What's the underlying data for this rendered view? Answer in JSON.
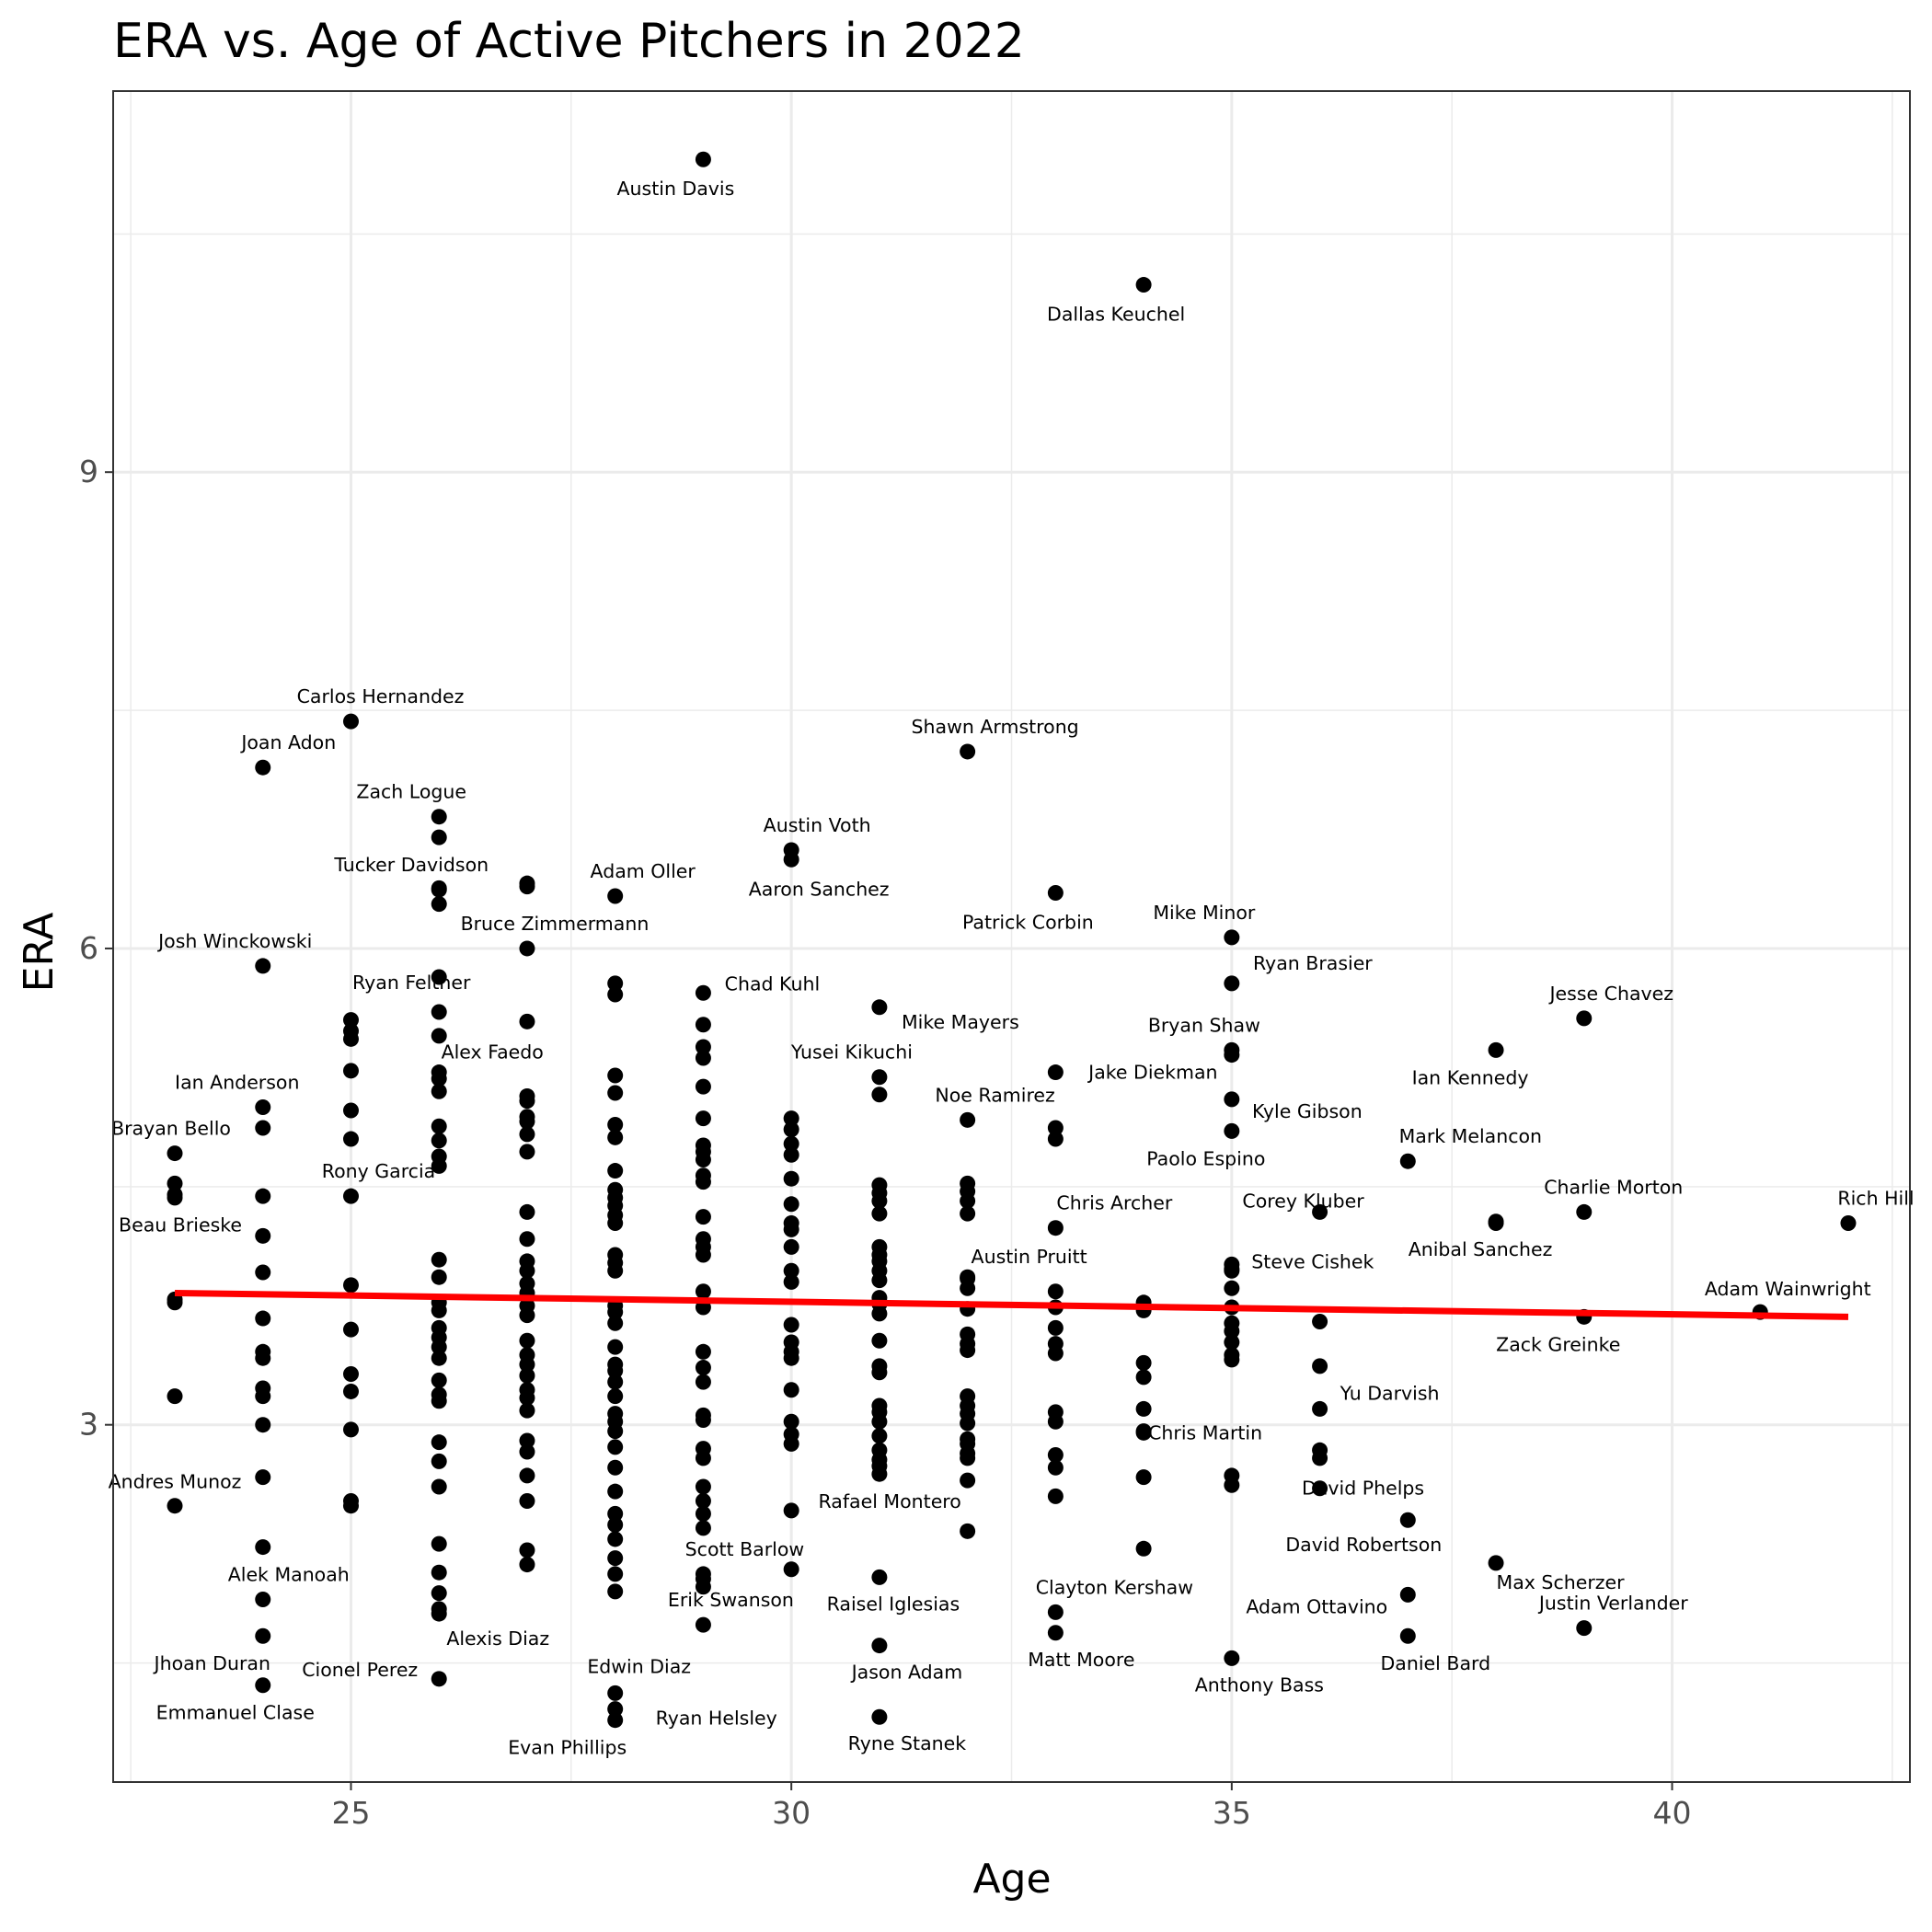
{
  "chart_data": {
    "type": "scatter",
    "title": "ERA vs. Age of Active Pitchers in 2022",
    "xlabel": "Age",
    "ylabel": "ERA",
    "xlim": [
      22.3,
      42.7
    ],
    "ylim": [
      0.75,
      11.4
    ],
    "x_ticks": [
      25,
      30,
      35,
      40
    ],
    "y_ticks": [
      3,
      6,
      9
    ],
    "x_minor_ticks": [
      22.5,
      27.5,
      32.5,
      37.5,
      42.5
    ],
    "y_minor_ticks": [
      1.5,
      4.5,
      7.5,
      10.5
    ],
    "grid": true,
    "marker_color": "#000000",
    "trend_color": "#ff0000",
    "trend_line": {
      "x": [
        23,
        42
      ],
      "y": [
        3.83,
        3.68
      ]
    },
    "labeled_points": [
      {
        "name": "Austin Davis",
        "x": 29,
        "y": 10.97,
        "dx": -30,
        "dy": 32
      },
      {
        "name": "Dallas Keuchel",
        "x": 34,
        "y": 10.18,
        "dx": -30,
        "dy": 32
      },
      {
        "name": "Carlos Hernandez",
        "x": 25,
        "y": 7.43,
        "dx": 32,
        "dy": -27
      },
      {
        "name": "Joan Adon",
        "x": 24,
        "y": 7.14,
        "dx": 28,
        "dy": -27
      },
      {
        "name": "Shawn Armstrong",
        "x": 32,
        "y": 7.24,
        "dx": 30,
        "dy": -27
      },
      {
        "name": "Zach Logue",
        "x": 26,
        "y": 6.83,
        "dx": -30,
        "dy": -27
      },
      {
        "name": "Austin Voth",
        "x": 30,
        "y": 6.62,
        "dx": 28,
        "dy": -27
      },
      {
        "name": "Aaron Sanchez",
        "x": 30,
        "y": 6.56,
        "dx": 30,
        "dy": 32
      },
      {
        "name": "Tucker Davidson",
        "x": 26,
        "y": 6.37,
        "dx": -30,
        "dy": -27
      },
      {
        "name": "Adam Oller",
        "x": 28,
        "y": 6.33,
        "dx": 30,
        "dy": -27
      },
      {
        "name": "Patrick Corbin",
        "x": 33,
        "y": 6.35,
        "dx": -30,
        "dy": 32
      },
      {
        "name": "Bruce Zimmermann",
        "x": 27,
        "y": 6.0,
        "dx": 30,
        "dy": -27
      },
      {
        "name": "Josh Winckowski",
        "x": 24,
        "y": 5.89,
        "dx": -30,
        "dy": -27
      },
      {
        "name": "Mike Minor",
        "x": 35,
        "y": 6.07,
        "dx": -30,
        "dy": -27
      },
      {
        "name": "Ryan Brasier",
        "x": 35,
        "y": 5.78,
        "dx": 88,
        "dy": -22
      },
      {
        "name": "Chad Kuhl",
        "x": 29,
        "y": 5.72,
        "dx": 75,
        "dy": -10
      },
      {
        "name": "Ryan Feltner",
        "x": 26,
        "y": 5.6,
        "dx": -30,
        "dy": -32
      },
      {
        "name": "Mike Mayers",
        "x": 31,
        "y": 5.63,
        "dx": 88,
        "dy": 16
      },
      {
        "name": "Jesse Chavez",
        "x": 39,
        "y": 5.56,
        "dx": 30,
        "dy": -27
      },
      {
        "name": "Bryan Shaw",
        "x": 35,
        "y": 5.36,
        "dx": -30,
        "dy": -27
      },
      {
        "name": "Alex Faedo",
        "x": 26,
        "y": 5.22,
        "dx": 58,
        "dy": -22
      },
      {
        "name": "Ian Kennedy",
        "x": 38,
        "y": 5.36,
        "dx": -28,
        "dy": 30
      },
      {
        "name": "Yusei Kikuchi",
        "x": 31,
        "y": 5.19,
        "dx": -30,
        "dy": -27
      },
      {
        "name": "Jake Diekman",
        "x": 33,
        "y": 5.22,
        "dx": 106,
        "dy": 0
      },
      {
        "name": "Ian Anderson",
        "x": 24,
        "y": 5.0,
        "dx": -28,
        "dy": -27
      },
      {
        "name": "Noe Ramirez",
        "x": 32,
        "y": 4.92,
        "dx": 30,
        "dy": -27
      },
      {
        "name": "Kyle Gibson",
        "x": 35,
        "y": 5.05,
        "dx": 82,
        "dy": 13
      },
      {
        "name": "Brayan Bello",
        "x": 23,
        "y": 4.71,
        "dx": -4,
        "dy": -27
      },
      {
        "name": "Mark Melancon",
        "x": 37,
        "y": 4.66,
        "dx": 68,
        "dy": -27
      },
      {
        "name": "Paolo Espino",
        "x": 35,
        "y": 4.85,
        "dx": -28,
        "dy": 30
      },
      {
        "name": "Rony Garcia",
        "x": 25,
        "y": 4.44,
        "dx": 30,
        "dy": -27
      },
      {
        "name": "Chris Archer",
        "x": 33,
        "y": 4.24,
        "dx": 64,
        "dy": -27
      },
      {
        "name": "Corey Kluber",
        "x": 36,
        "y": 4.34,
        "dx": -18,
        "dy": -12
      },
      {
        "name": "Charlie Morton",
        "x": 39,
        "y": 4.34,
        "dx": 32,
        "dy": -27
      },
      {
        "name": "Rich Hill",
        "x": 42,
        "y": 4.27,
        "dx": 30,
        "dy": -27
      },
      {
        "name": "Beau Brieske",
        "x": 23,
        "y": 4.45,
        "dx": 6,
        "dy": 33
      },
      {
        "name": "Anibal Sanchez",
        "x": 38,
        "y": 4.28,
        "dx": -17,
        "dy": 30
      },
      {
        "name": "Austin Pruitt",
        "x": 32,
        "y": 3.92,
        "dx": 67,
        "dy": -24
      },
      {
        "name": "Steve Cishek",
        "x": 35,
        "y": 3.98,
        "dx": 88,
        "dy": -8
      },
      {
        "name": "Adam Wainwright",
        "x": 41,
        "y": 3.71,
        "dx": 30,
        "dy": -25
      },
      {
        "name": "Zack Greinke",
        "x": 39,
        "y": 3.68,
        "dx": -28,
        "dy": 30
      },
      {
        "name": "Yu Darvish",
        "x": 36,
        "y": 3.1,
        "dx": 76,
        "dy": -17
      },
      {
        "name": "Chris Martin",
        "x": 34,
        "y": 2.95,
        "dx": 67,
        "dy": 0
      },
      {
        "name": "Andres Munoz",
        "x": 23,
        "y": 2.49,
        "dx": 0,
        "dy": -26
      },
      {
        "name": "David Phelps",
        "x": 36,
        "y": 2.6,
        "dx": 47,
        "dy": 0
      },
      {
        "name": "Rafael Montero",
        "x": 30,
        "y": 2.46,
        "dx": 107,
        "dy": -10
      },
      {
        "name": "David Robertson",
        "x": 37,
        "y": 2.4,
        "dx": -48,
        "dy": 27
      },
      {
        "name": "Max Scherzer",
        "x": 38,
        "y": 2.13,
        "dx": 70,
        "dy": 21
      },
      {
        "name": "Scott Barlow",
        "x": 29,
        "y": 2.06,
        "dx": 45,
        "dy": -27
      },
      {
        "name": "Clayton Kershaw",
        "x": 33,
        "y": 1.82,
        "dx": 64,
        "dy": -27
      },
      {
        "name": "Raisel Iglesias",
        "x": 31,
        "y": 2.04,
        "dx": 15,
        "dy": 29
      },
      {
        "name": "Alek Manoah",
        "x": 24,
        "y": 1.9,
        "dx": 28,
        "dy": -27
      },
      {
        "name": "Adam Ottavino",
        "x": 37,
        "y": 1.93,
        "dx": -99,
        "dy": 13
      },
      {
        "name": "Justin Verlander",
        "x": 39,
        "y": 1.72,
        "dx": 32,
        "dy": -27
      },
      {
        "name": "Erik Swanson",
        "x": 29,
        "y": 1.74,
        "dx": 30,
        "dy": -27
      },
      {
        "name": "Matt Moore",
        "x": 33,
        "y": 1.69,
        "dx": 28,
        "dy": 29
      },
      {
        "name": "Daniel Bard",
        "x": 37,
        "y": 1.67,
        "dx": 30,
        "dy": 30
      },
      {
        "name": "Jhoan Duran",
        "x": 24,
        "y": 1.67,
        "dx": -55,
        "dy": 30
      },
      {
        "name": "Alexis Diaz",
        "x": 26,
        "y": 1.84,
        "dx": 64,
        "dy": 32
      },
      {
        "name": "Jason Adam",
        "x": 31,
        "y": 1.61,
        "dx": 30,
        "dy": 29
      },
      {
        "name": "Anthony Bass",
        "x": 35,
        "y": 1.53,
        "dx": 30,
        "dy": 29
      },
      {
        "name": "Edwin Diaz",
        "x": 28,
        "y": 1.31,
        "dx": 26,
        "dy": -29
      },
      {
        "name": "Cionel Perez",
        "x": 26,
        "y": 1.4,
        "dx": -86,
        "dy": -10
      },
      {
        "name": "Emmanuel Clase",
        "x": 24,
        "y": 1.36,
        "dx": -30,
        "dy": 30
      },
      {
        "name": "Ryan Helsley",
        "x": 28,
        "y": 1.21,
        "dx": 110,
        "dy": 10
      },
      {
        "name": "Ryne Stanek",
        "x": 31,
        "y": 1.16,
        "dx": 30,
        "dy": 29
      },
      {
        "name": "Evan Phillips",
        "x": 28,
        "y": 1.14,
        "dx": -52,
        "dy": 30
      }
    ],
    "unlabeled_points": [
      [
        23,
        3.79
      ],
      [
        23,
        3.77
      ],
      [
        23,
        4.52
      ],
      [
        23,
        4.43
      ],
      [
        23,
        3.18
      ],
      [
        24,
        4.44
      ],
      [
        24,
        4.19
      ],
      [
        24,
        3.96
      ],
      [
        24,
        3.67
      ],
      [
        24,
        3.46
      ],
      [
        24,
        3.42
      ],
      [
        24,
        3.23
      ],
      [
        24,
        3.18
      ],
      [
        24,
        3.0
      ],
      [
        24,
        2.67
      ],
      [
        24,
        2.23
      ],
      [
        24,
        4.87
      ],
      [
        25,
        5.55
      ],
      [
        25,
        5.48
      ],
      [
        25,
        5.43
      ],
      [
        25,
        5.23
      ],
      [
        25,
        4.98
      ],
      [
        25,
        4.8
      ],
      [
        25,
        3.88
      ],
      [
        25,
        3.6
      ],
      [
        25,
        3.32
      ],
      [
        25,
        3.21
      ],
      [
        25,
        2.97
      ],
      [
        25,
        2.52
      ],
      [
        25,
        2.49
      ],
      [
        26,
        6.7
      ],
      [
        26,
        6.38
      ],
      [
        26,
        6.28
      ],
      [
        26,
        5.82
      ],
      [
        26,
        5.45
      ],
      [
        26,
        5.18
      ],
      [
        26,
        5.1
      ],
      [
        26,
        4.88
      ],
      [
        26,
        4.79
      ],
      [
        26,
        4.69
      ],
      [
        26,
        4.63
      ],
      [
        26,
        4.04
      ],
      [
        26,
        3.93
      ],
      [
        26,
        3.77
      ],
      [
        26,
        3.72
      ],
      [
        26,
        3.61
      ],
      [
        26,
        3.55
      ],
      [
        26,
        3.49
      ],
      [
        26,
        3.42
      ],
      [
        26,
        3.28
      ],
      [
        26,
        3.19
      ],
      [
        26,
        3.15
      ],
      [
        26,
        2.89
      ],
      [
        26,
        2.77
      ],
      [
        26,
        2.61
      ],
      [
        26,
        2.25
      ],
      [
        26,
        2.07
      ],
      [
        26,
        1.94
      ],
      [
        26,
        1.81
      ],
      [
        27,
        6.41
      ],
      [
        27,
        6.39
      ],
      [
        27,
        5.54
      ],
      [
        27,
        5.07
      ],
      [
        27,
        5.04
      ],
      [
        27,
        4.94
      ],
      [
        27,
        4.91
      ],
      [
        27,
        4.83
      ],
      [
        27,
        4.72
      ],
      [
        27,
        4.34
      ],
      [
        27,
        4.17
      ],
      [
        27,
        4.03
      ],
      [
        27,
        3.97
      ],
      [
        27,
        3.89
      ],
      [
        27,
        3.83
      ],
      [
        27,
        3.75
      ],
      [
        27,
        3.69
      ],
      [
        27,
        3.53
      ],
      [
        27,
        3.44
      ],
      [
        27,
        3.38
      ],
      [
        27,
        3.31
      ],
      [
        27,
        3.22
      ],
      [
        27,
        3.17
      ],
      [
        27,
        3.09
      ],
      [
        27,
        2.9
      ],
      [
        27,
        2.83
      ],
      [
        27,
        2.68
      ],
      [
        27,
        2.52
      ],
      [
        27,
        2.21
      ],
      [
        27,
        2.12
      ],
      [
        28,
        5.78
      ],
      [
        28,
        5.71
      ],
      [
        28,
        5.2
      ],
      [
        28,
        5.09
      ],
      [
        28,
        4.89
      ],
      [
        28,
        4.81
      ],
      [
        28,
        4.6
      ],
      [
        28,
        4.48
      ],
      [
        28,
        4.43
      ],
      [
        28,
        4.38
      ],
      [
        28,
        4.32
      ],
      [
        28,
        4.27
      ],
      [
        28,
        4.07
      ],
      [
        28,
        4.02
      ],
      [
        28,
        3.97
      ],
      [
        28,
        3.75
      ],
      [
        28,
        3.71
      ],
      [
        28,
        3.64
      ],
      [
        28,
        3.49
      ],
      [
        28,
        3.38
      ],
      [
        28,
        3.34
      ],
      [
        28,
        3.27
      ],
      [
        28,
        3.18
      ],
      [
        28,
        3.07
      ],
      [
        28,
        3.02
      ],
      [
        28,
        2.96
      ],
      [
        28,
        2.86
      ],
      [
        28,
        2.73
      ],
      [
        28,
        2.58
      ],
      [
        28,
        2.44
      ],
      [
        28,
        2.37
      ],
      [
        28,
        2.28
      ],
      [
        28,
        2.16
      ],
      [
        28,
        2.06
      ],
      [
        28,
        1.95
      ],
      [
        29,
        5.52
      ],
      [
        29,
        5.38
      ],
      [
        29,
        5.31
      ],
      [
        29,
        5.13
      ],
      [
        29,
        4.93
      ],
      [
        29,
        4.76
      ],
      [
        29,
        4.72
      ],
      [
        29,
        4.67
      ],
      [
        29,
        4.57
      ],
      [
        29,
        4.53
      ],
      [
        29,
        4.31
      ],
      [
        29,
        4.17
      ],
      [
        29,
        4.12
      ],
      [
        29,
        4.07
      ],
      [
        29,
        3.84
      ],
      [
        29,
        3.74
      ],
      [
        29,
        3.46
      ],
      [
        29,
        3.36
      ],
      [
        29,
        3.27
      ],
      [
        29,
        3.06
      ],
      [
        29,
        3.03
      ],
      [
        29,
        2.85
      ],
      [
        29,
        2.79
      ],
      [
        29,
        2.61
      ],
      [
        29,
        2.52
      ],
      [
        29,
        2.44
      ],
      [
        29,
        2.35
      ],
      [
        29,
        2.03
      ],
      [
        29,
        1.98
      ],
      [
        30,
        4.93
      ],
      [
        30,
        4.86
      ],
      [
        30,
        4.77
      ],
      [
        30,
        4.7
      ],
      [
        30,
        4.55
      ],
      [
        30,
        4.39
      ],
      [
        30,
        4.27
      ],
      [
        30,
        4.23
      ],
      [
        30,
        4.12
      ],
      [
        30,
        3.97
      ],
      [
        30,
        3.9
      ],
      [
        30,
        3.63
      ],
      [
        30,
        3.52
      ],
      [
        30,
        3.46
      ],
      [
        30,
        3.42
      ],
      [
        30,
        3.22
      ],
      [
        30,
        3.02
      ],
      [
        30,
        2.94
      ],
      [
        30,
        2.88
      ],
      [
        30,
        2.09
      ],
      [
        31,
        5.08
      ],
      [
        31,
        4.51
      ],
      [
        31,
        4.46
      ],
      [
        31,
        4.41
      ],
      [
        31,
        4.33
      ],
      [
        31,
        4.12
      ],
      [
        31,
        4.07
      ],
      [
        31,
        4.03
      ],
      [
        31,
        3.97
      ],
      [
        31,
        3.91
      ],
      [
        31,
        3.8
      ],
      [
        31,
        3.76
      ],
      [
        31,
        3.7
      ],
      [
        31,
        3.53
      ],
      [
        31,
        3.37
      ],
      [
        31,
        3.33
      ],
      [
        31,
        3.12
      ],
      [
        31,
        3.08
      ],
      [
        31,
        3.02
      ],
      [
        31,
        2.93
      ],
      [
        31,
        2.84
      ],
      [
        31,
        2.78
      ],
      [
        31,
        2.74
      ],
      [
        31,
        2.69
      ],
      [
        32,
        4.52
      ],
      [
        32,
        4.47
      ],
      [
        32,
        4.41
      ],
      [
        32,
        4.33
      ],
      [
        32,
        3.93
      ],
      [
        32,
        3.86
      ],
      [
        32,
        3.73
      ],
      [
        32,
        3.57
      ],
      [
        32,
        3.51
      ],
      [
        32,
        3.47
      ],
      [
        32,
        3.18
      ],
      [
        32,
        3.12
      ],
      [
        32,
        3.07
      ],
      [
        32,
        3.01
      ],
      [
        32,
        2.91
      ],
      [
        32,
        2.88
      ],
      [
        32,
        2.82
      ],
      [
        32,
        2.79
      ],
      [
        32,
        2.65
      ],
      [
        32,
        2.33
      ],
      [
        33,
        4.87
      ],
      [
        33,
        4.8
      ],
      [
        33,
        3.84
      ],
      [
        33,
        3.74
      ],
      [
        33,
        3.61
      ],
      [
        33,
        3.51
      ],
      [
        33,
        3.45
      ],
      [
        33,
        3.08
      ],
      [
        33,
        3.02
      ],
      [
        33,
        2.81
      ],
      [
        33,
        2.73
      ],
      [
        33,
        2.55
      ],
      [
        34,
        3.77
      ],
      [
        34,
        3.72
      ],
      [
        34,
        3.39
      ],
      [
        34,
        3.3
      ],
      [
        34,
        3.1
      ],
      [
        34,
        2.96
      ],
      [
        34,
        2.67
      ],
      [
        34,
        2.22
      ],
      [
        35,
        5.33
      ],
      [
        35,
        4.01
      ],
      [
        35,
        3.97
      ],
      [
        35,
        3.86
      ],
      [
        35,
        3.74
      ],
      [
        35,
        3.64
      ],
      [
        35,
        3.59
      ],
      [
        35,
        3.52
      ],
      [
        35,
        3.44
      ],
      [
        35,
        3.41
      ],
      [
        35,
        2.68
      ],
      [
        35,
        2.62
      ],
      [
        36,
        3.65
      ],
      [
        36,
        3.37
      ],
      [
        36,
        2.84
      ],
      [
        36,
        2.79
      ],
      [
        38,
        4.27
      ]
    ]
  }
}
